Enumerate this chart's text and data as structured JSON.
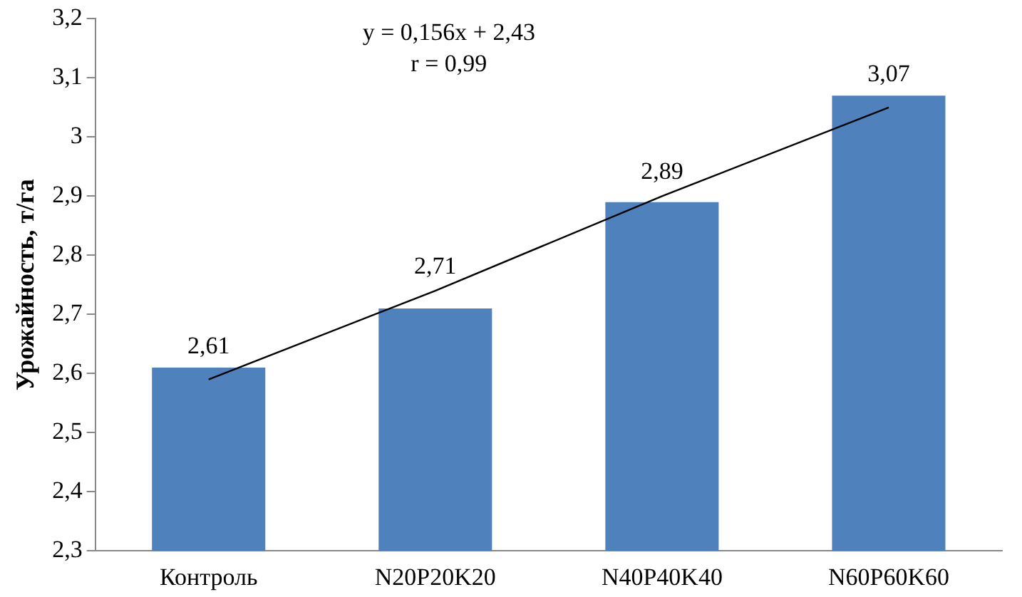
{
  "chart_data": {
    "type": "bar",
    "ylabel": "Урожайность, т/га",
    "categories": [
      "Контроль",
      "N20P20K20",
      "N40P40K40",
      "N60P60K60"
    ],
    "series": [
      {
        "type": "bar",
        "color": "#4f81bd",
        "values": [
          2.61,
          2.71,
          2.89,
          3.07
        ],
        "value_labels": [
          "2,61",
          "2,71",
          "2,89",
          "3,07"
        ]
      },
      {
        "type": "line",
        "color": "#000000",
        "values": [
          2.59,
          2.74,
          2.9,
          3.05
        ],
        "marker": "none"
      }
    ],
    "ylim": [
      2.3,
      3.2
    ],
    "yticks": [
      {
        "value": 2.3,
        "label": "2,3"
      },
      {
        "value": 2.4,
        "label": "2,4"
      },
      {
        "value": 2.5,
        "label": "2,5"
      },
      {
        "value": 2.6,
        "label": "2,6"
      },
      {
        "value": 2.7,
        "label": "2,7"
      },
      {
        "value": 2.8,
        "label": "2,8"
      },
      {
        "value": 2.9,
        "label": "2,9"
      },
      {
        "value": 3,
        "label": "3"
      },
      {
        "value": 3.1,
        "label": "3,1"
      },
      {
        "value": 3.2,
        "label": "3,2"
      }
    ],
    "annotations": [
      "y = 0,156x + 2,43",
      "r = 0,99"
    ],
    "grid": false,
    "legend": false
  }
}
